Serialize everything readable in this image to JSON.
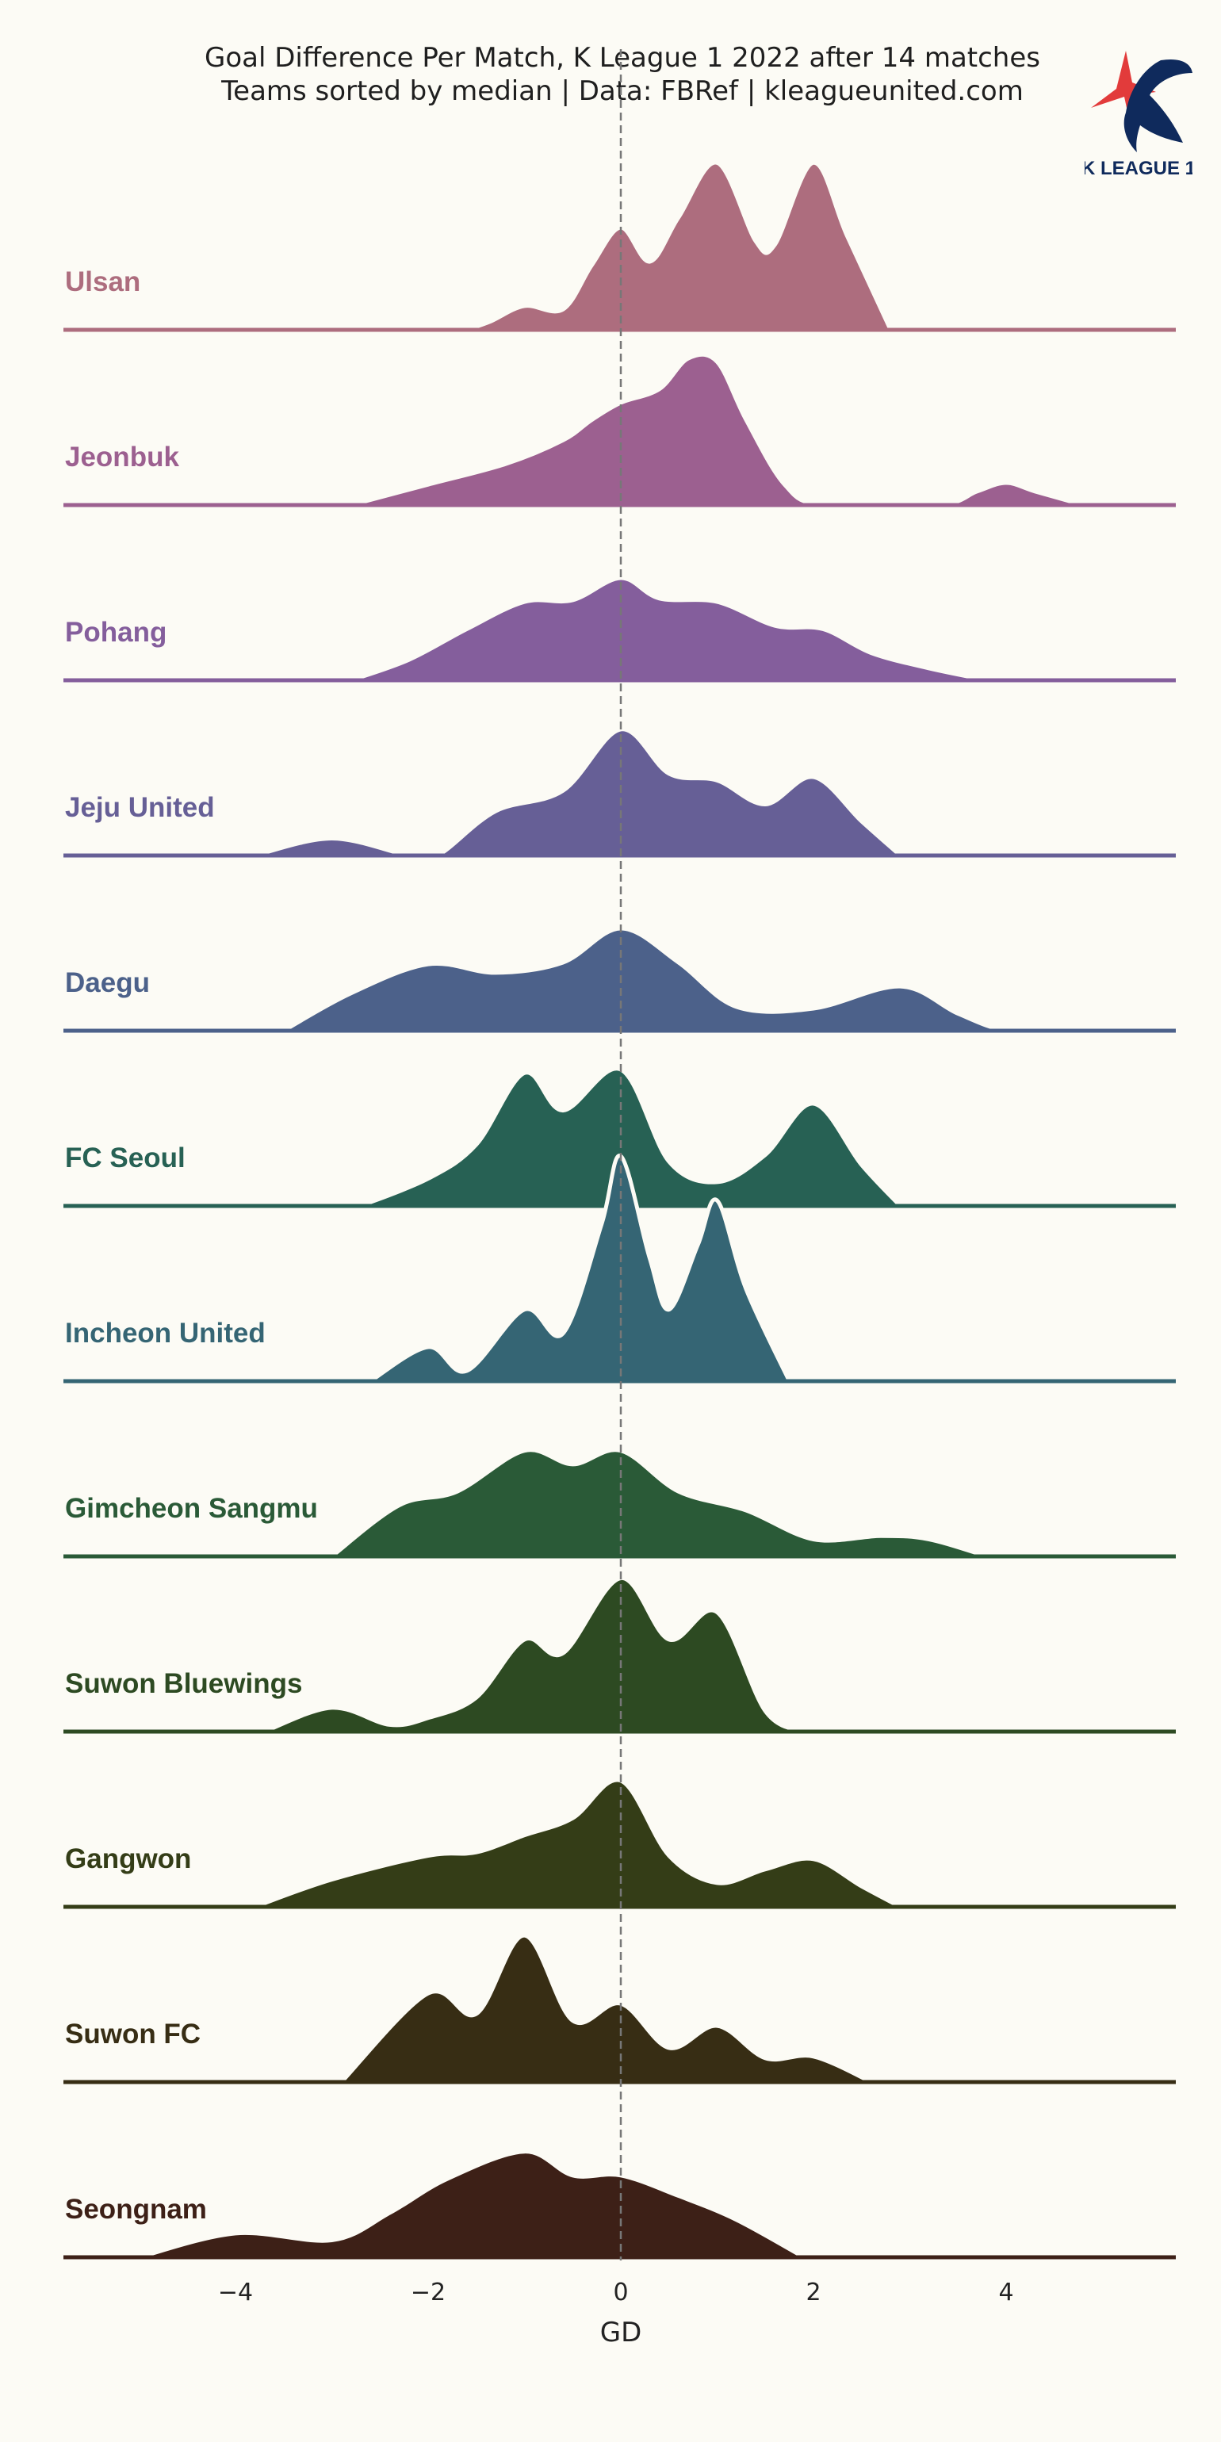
{
  "title": "Goal Difference Per Match, K League 1 2022 after 14 matches",
  "subtitle": "Teams sorted by median | Data: FBRef | kleagueunited.com",
  "logo": {
    "name": "k-league-1-logo",
    "text": "K LEAGUE 1",
    "colors": [
      "#0f2a5c",
      "#e23b3b"
    ]
  },
  "chart_data": {
    "type": "ridgeline",
    "title": "Goal Difference Per Match, K League 1 2022 after 14 matches",
    "subtitle": "Teams sorted by median | Data: FBRef | kleagueunited.com",
    "xlabel": "GD",
    "xlim": [
      -5.9,
      5.7
    ],
    "xticks": [
      {
        "value": -4,
        "label": "−4"
      },
      {
        "value": -2,
        "label": "−2"
      },
      {
        "value": 0,
        "label": "0"
      },
      {
        "value": 2,
        "label": "2"
      },
      {
        "value": 4,
        "label": "4"
      }
    ],
    "median_line": {
      "x": 0,
      "style": "dashed"
    },
    "series": [
      {
        "name": "Ulsan",
        "color": "#ad6d7e",
        "gd_values": [
          -1,
          0,
          0,
          0,
          1,
          1,
          1,
          1,
          1,
          2,
          2,
          2,
          2,
          2
        ],
        "density": [
          [
            -1.6,
            0
          ],
          [
            -1.35,
            0.05
          ],
          [
            -1.0,
            0.14
          ],
          [
            -0.6,
            0.12
          ],
          [
            -0.3,
            0.38
          ],
          [
            0,
            0.6
          ],
          [
            0.3,
            0.4
          ],
          [
            0.6,
            0.66
          ],
          [
            1.0,
            0.98
          ],
          [
            1.4,
            0.52
          ],
          [
            1.6,
            0.5
          ],
          [
            2.0,
            0.98
          ],
          [
            2.35,
            0.55
          ],
          [
            2.8,
            0
          ]
        ]
      },
      {
        "name": "Jeonbuk",
        "color": "#9c6090",
        "gd_values": [
          -2,
          -1,
          -1,
          0,
          0,
          0,
          1,
          1,
          1,
          1,
          1,
          1,
          1,
          4
        ],
        "density": [
          [
            -2.8,
            0
          ],
          [
            -2.0,
            0.12
          ],
          [
            -1.2,
            0.24
          ],
          [
            -0.6,
            0.38
          ],
          [
            -0.3,
            0.5
          ],
          [
            0,
            0.6
          ],
          [
            0.4,
            0.68
          ],
          [
            0.7,
            0.86
          ],
          [
            1.0,
            0.84
          ],
          [
            1.3,
            0.5
          ],
          [
            1.7,
            0.12
          ],
          [
            2.1,
            0
          ],
          [
            3.3,
            0
          ],
          [
            3.7,
            0.08
          ],
          [
            4.0,
            0.13
          ],
          [
            4.3,
            0.08
          ],
          [
            4.8,
            0
          ]
        ]
      },
      {
        "name": "Pohang",
        "color": "#845e9c",
        "gd_values": [
          -2,
          -1,
          -1,
          -1,
          0,
          0,
          0,
          0,
          1,
          1,
          1,
          2,
          2,
          3
        ],
        "density": [
          [
            -2.8,
            0
          ],
          [
            -2.2,
            0.12
          ],
          [
            -1.6,
            0.3
          ],
          [
            -1.0,
            0.46
          ],
          [
            -0.5,
            0.47
          ],
          [
            0,
            0.6
          ],
          [
            0.4,
            0.48
          ],
          [
            1.0,
            0.46
          ],
          [
            1.6,
            0.32
          ],
          [
            2.1,
            0.3
          ],
          [
            2.6,
            0.16
          ],
          [
            3.2,
            0.07
          ],
          [
            3.8,
            0
          ]
        ]
      },
      {
        "name": "Jeju United",
        "color": "#665f96",
        "gd_values": [
          -3,
          -1,
          -1,
          0,
          0,
          0,
          0,
          0,
          1,
          1,
          1,
          2,
          2,
          2
        ],
        "density": [
          [
            -3.8,
            0
          ],
          [
            -3.0,
            0.1
          ],
          [
            -2.2,
            0
          ],
          [
            -1.9,
            0
          ],
          [
            -1.3,
            0.26
          ],
          [
            -0.6,
            0.38
          ],
          [
            0,
            0.74
          ],
          [
            0.5,
            0.48
          ],
          [
            1.0,
            0.44
          ],
          [
            1.5,
            0.3
          ],
          [
            2.0,
            0.46
          ],
          [
            2.5,
            0.2
          ],
          [
            2.9,
            0
          ]
        ]
      },
      {
        "name": "Daegu",
        "color": "#4c618a",
        "gd_values": [
          -3,
          -2,
          -2,
          -2,
          -1,
          0,
          0,
          0,
          0,
          1,
          2,
          3,
          3,
          4
        ],
        "density": [
          [
            -3.5,
            0
          ],
          [
            -2.8,
            0.22
          ],
          [
            -2.0,
            0.39
          ],
          [
            -1.3,
            0.34
          ],
          [
            -0.6,
            0.4
          ],
          [
            0,
            0.6
          ],
          [
            0.6,
            0.4
          ],
          [
            1.2,
            0.14
          ],
          [
            2.0,
            0.13
          ],
          [
            2.9,
            0.26
          ],
          [
            3.5,
            0.1
          ],
          [
            4.0,
            0
          ],
          [
            4.6,
            0
          ]
        ]
      },
      {
        "name": "FC Seoul",
        "color": "#276154",
        "gd_values": [
          -2,
          -1,
          -1,
          -1,
          -1,
          0,
          0,
          0,
          0,
          1,
          1,
          2,
          2,
          2
        ],
        "density": [
          [
            -2.7,
            0
          ],
          [
            -2.0,
            0.16
          ],
          [
            -1.5,
            0.36
          ],
          [
            -1.0,
            0.78
          ],
          [
            -0.6,
            0.56
          ],
          [
            0,
            0.8
          ],
          [
            0.5,
            0.26
          ],
          [
            1.0,
            0.14
          ],
          [
            1.5,
            0.3
          ],
          [
            2.0,
            0.6
          ],
          [
            2.5,
            0.24
          ],
          [
            2.9,
            0
          ]
        ]
      },
      {
        "name": "Incheon United",
        "color": "#356574",
        "gd_values": [
          -2,
          -1,
          -1,
          0,
          0,
          0,
          0,
          0,
          0,
          1,
          1,
          1,
          1,
          1
        ],
        "density": [
          [
            -2.6,
            0
          ],
          [
            -2.0,
            0.2
          ],
          [
            -1.6,
            0.06
          ],
          [
            -1.0,
            0.42
          ],
          [
            -0.6,
            0.28
          ],
          [
            -0.2,
            0.92
          ],
          [
            0,
            1.32
          ],
          [
            0.3,
            0.72
          ],
          [
            0.5,
            0.42
          ],
          [
            0.8,
            0.8
          ],
          [
            1.0,
            1.06
          ],
          [
            1.3,
            0.54
          ],
          [
            1.75,
            0
          ]
        ]
      },
      {
        "name": "Gimcheon Sangmu",
        "color": "#2a5a37",
        "gd_values": [
          -2,
          -2,
          -1,
          -1,
          -1,
          0,
          0,
          0,
          0,
          1,
          1,
          2,
          3,
          3
        ],
        "density": [
          [
            -3.0,
            0
          ],
          [
            -2.3,
            0.3
          ],
          [
            -1.7,
            0.38
          ],
          [
            -1.0,
            0.62
          ],
          [
            -0.5,
            0.54
          ],
          [
            0,
            0.62
          ],
          [
            0.6,
            0.38
          ],
          [
            1.3,
            0.27
          ],
          [
            2.0,
            0.1
          ],
          [
            2.7,
            0.12
          ],
          [
            3.2,
            0.1
          ],
          [
            3.8,
            0
          ]
        ]
      },
      {
        "name": "Suwon Bluewings",
        "color": "#2d4a22",
        "gd_values": [
          -3,
          -2,
          -1,
          -1,
          -1,
          0,
          0,
          0,
          0,
          0,
          1,
          1,
          1,
          1
        ],
        "density": [
          [
            -3.7,
            0
          ],
          [
            -3.0,
            0.14
          ],
          [
            -2.4,
            0.04
          ],
          [
            -2.0,
            0.08
          ],
          [
            -1.5,
            0.2
          ],
          [
            -1.0,
            0.54
          ],
          [
            -0.6,
            0.46
          ],
          [
            0,
            0.9
          ],
          [
            0.5,
            0.54
          ],
          [
            1.0,
            0.7
          ],
          [
            1.5,
            0.12
          ],
          [
            1.9,
            0
          ]
        ]
      },
      {
        "name": "Gangwon",
        "color": "#343d17",
        "gd_values": [
          -3,
          -2,
          -2,
          -1,
          -1,
          -1,
          0,
          0,
          0,
          0,
          0,
          1,
          2,
          2
        ],
        "density": [
          [
            -3.8,
            0
          ],
          [
            -3.0,
            0.16
          ],
          [
            -2.0,
            0.3
          ],
          [
            -1.5,
            0.32
          ],
          [
            -1.0,
            0.42
          ],
          [
            -0.5,
            0.52
          ],
          [
            0,
            0.74
          ],
          [
            0.5,
            0.3
          ],
          [
            1.0,
            0.14
          ],
          [
            1.5,
            0.22
          ],
          [
            2.0,
            0.28
          ],
          [
            2.5,
            0.12
          ],
          [
            2.9,
            0
          ]
        ]
      },
      {
        "name": "Suwon FC",
        "color": "#372d14",
        "gd_values": [
          -2,
          -2,
          -1,
          -1,
          -1,
          -1,
          -1,
          0,
          0,
          0,
          1,
          1,
          2,
          2
        ],
        "density": [
          [
            -2.9,
            0
          ],
          [
            -2.0,
            0.52
          ],
          [
            -1.5,
            0.4
          ],
          [
            -1.0,
            0.86
          ],
          [
            -0.5,
            0.36
          ],
          [
            0,
            0.46
          ],
          [
            0.5,
            0.2
          ],
          [
            1.0,
            0.33
          ],
          [
            1.5,
            0.14
          ],
          [
            2.0,
            0.15
          ],
          [
            2.6,
            0
          ]
        ]
      },
      {
        "name": "Seongnam",
        "color": "#3d2017",
        "gd_values": [
          -4,
          -3,
          -2,
          -2,
          -1,
          -1,
          -1,
          -1,
          0,
          0,
          0,
          1,
          1,
          1
        ],
        "density": [
          [
            -5.0,
            0
          ],
          [
            -4.0,
            0.14
          ],
          [
            -3.0,
            0.1
          ],
          [
            -2.4,
            0.26
          ],
          [
            -1.8,
            0.46
          ],
          [
            -1.0,
            0.62
          ],
          [
            -0.5,
            0.48
          ],
          [
            0,
            0.48
          ],
          [
            0.6,
            0.36
          ],
          [
            1.2,
            0.22
          ],
          [
            1.9,
            0
          ]
        ]
      }
    ]
  }
}
